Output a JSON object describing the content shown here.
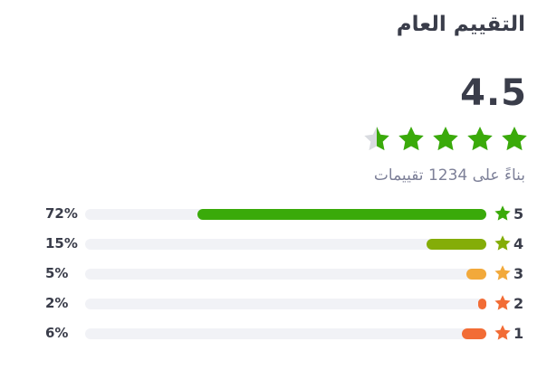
{
  "title": "التقييم العام",
  "average": "4.5",
  "average_value": 4.5,
  "basis_text": "بناءً على 1234 تقييمات",
  "colors": {
    "star_filled": "#3aaa0a",
    "star_empty": "#d9dbe0",
    "track": "#f1f2f6"
  },
  "rows": [
    {
      "stars": "5",
      "percent_label": "72%",
      "percent": 72,
      "color": "#3aaa0a"
    },
    {
      "stars": "4",
      "percent_label": "15%",
      "percent": 15,
      "color": "#84ad08"
    },
    {
      "stars": "3",
      "percent_label": "5%",
      "percent": 5,
      "color": "#f2a93b"
    },
    {
      "stars": "2",
      "percent_label": "2%",
      "percent": 2,
      "color": "#f26c35"
    },
    {
      "stars": "1",
      "percent_label": "6%",
      "percent": 6,
      "color": "#f26c35"
    }
  ]
}
